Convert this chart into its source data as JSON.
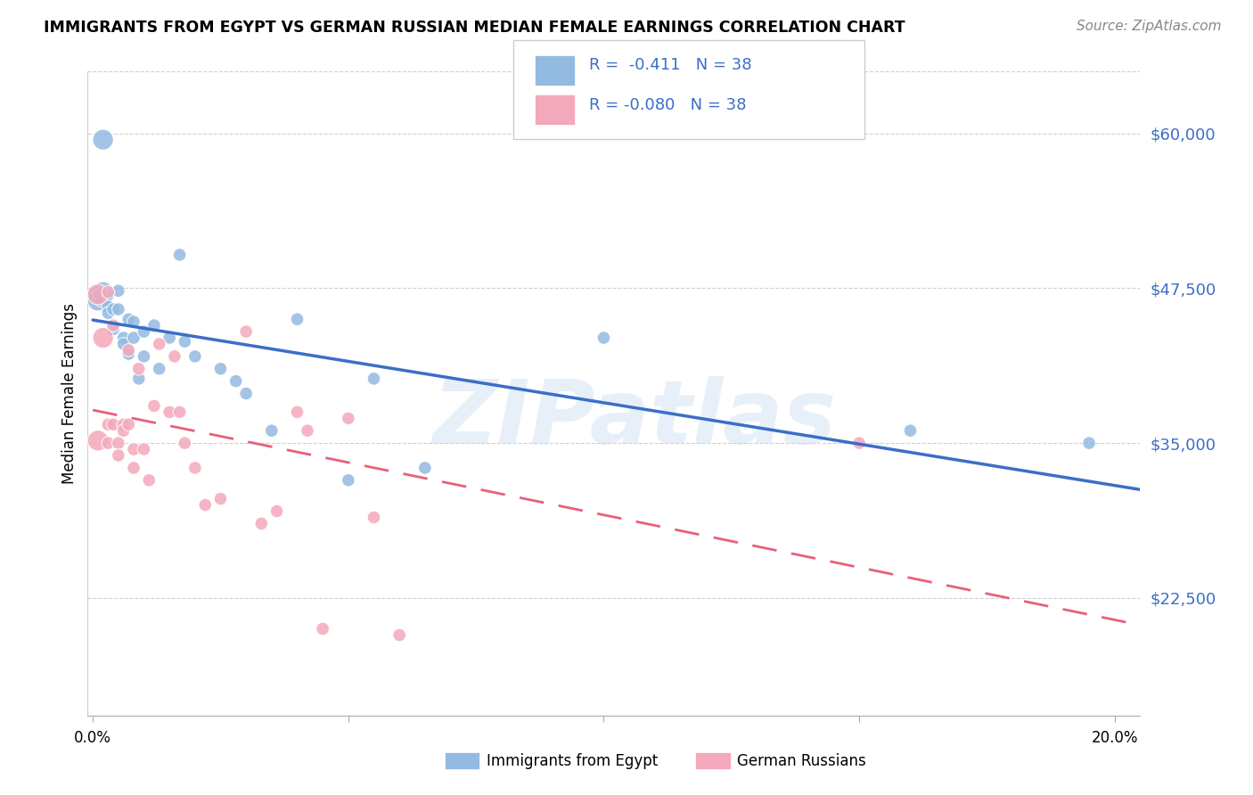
{
  "title": "IMMIGRANTS FROM EGYPT VS GERMAN RUSSIAN MEDIAN FEMALE EARNINGS CORRELATION CHART",
  "source": "Source: ZipAtlas.com",
  "ylabel": "Median Female Earnings",
  "ytick_labels": [
    "$22,500",
    "$35,000",
    "$47,500",
    "$60,000"
  ],
  "ytick_values": [
    22500,
    35000,
    47500,
    60000
  ],
  "ylim": [
    13000,
    65000
  ],
  "xlim": [
    -0.001,
    0.205
  ],
  "legend_label1": "Immigrants from Egypt",
  "legend_label2": "German Russians",
  "color_egypt": "#93BAE0",
  "color_german": "#F4A8BB",
  "color_egypt_line": "#3B6EC8",
  "color_german_line": "#E8607A",
  "watermark": "ZIPatlas",
  "egypt_x": [
    0.001,
    0.001,
    0.002,
    0.002,
    0.003,
    0.003,
    0.003,
    0.004,
    0.004,
    0.005,
    0.005,
    0.006,
    0.006,
    0.007,
    0.007,
    0.008,
    0.008,
    0.009,
    0.01,
    0.01,
    0.012,
    0.013,
    0.015,
    0.017,
    0.018,
    0.02,
    0.025,
    0.028,
    0.03,
    0.035,
    0.04,
    0.05,
    0.055,
    0.065,
    0.1,
    0.16,
    0.195,
    0.002
  ],
  "egypt_y": [
    47000,
    46500,
    47200,
    46800,
    47000,
    46000,
    45500,
    44200,
    45800,
    47300,
    45800,
    43500,
    43000,
    42200,
    45000,
    44800,
    43500,
    40200,
    44000,
    42000,
    44500,
    41000,
    43500,
    50200,
    43200,
    42000,
    41000,
    40000,
    39000,
    36000,
    45000,
    32000,
    40200,
    33000,
    43500,
    36000,
    35000,
    59500
  ],
  "german_x": [
    0.001,
    0.001,
    0.002,
    0.003,
    0.003,
    0.004,
    0.004,
    0.005,
    0.005,
    0.006,
    0.006,
    0.007,
    0.007,
    0.008,
    0.008,
    0.009,
    0.01,
    0.011,
    0.012,
    0.013,
    0.015,
    0.016,
    0.017,
    0.018,
    0.02,
    0.022,
    0.025,
    0.03,
    0.033,
    0.036,
    0.04,
    0.042,
    0.045,
    0.05,
    0.055,
    0.06,
    0.15,
    0.003
  ],
  "german_y": [
    35200,
    47000,
    43500,
    36500,
    35000,
    44500,
    36500,
    35000,
    34000,
    36500,
    36000,
    42500,
    36500,
    34500,
    33000,
    41000,
    34500,
    32000,
    38000,
    43000,
    37500,
    42000,
    37500,
    35000,
    33000,
    30000,
    30500,
    44000,
    28500,
    29500,
    37500,
    36000,
    20000,
    37000,
    29000,
    19500,
    35000,
    47200
  ]
}
